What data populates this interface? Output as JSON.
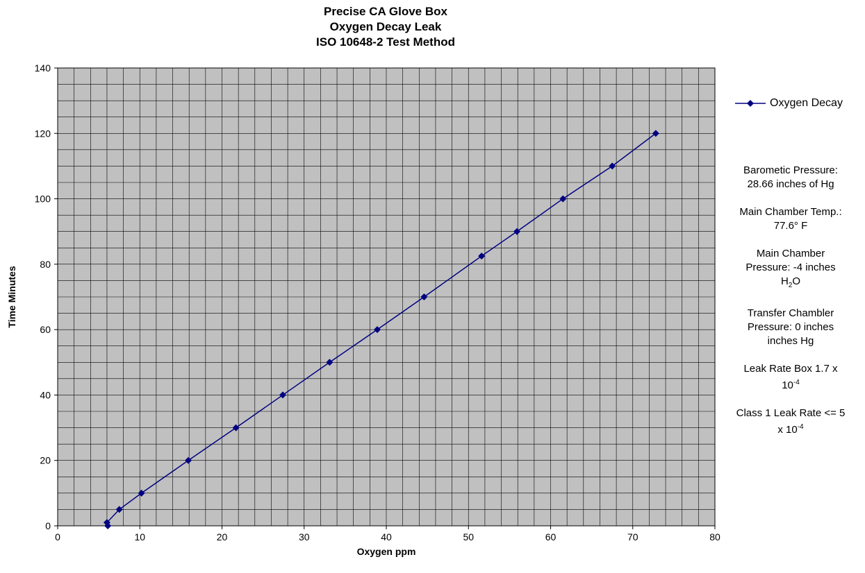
{
  "chart_data": {
    "type": "scatter",
    "mode": "lines+markers",
    "title": [
      "Precise CA Glove Box",
      "Oxygen Decay Leak",
      "ISO 10648-2 Test Method"
    ],
    "xlabel": "Oxygen ppm",
    "ylabel": "Time Minutes",
    "xlim": [
      0,
      80
    ],
    "ylim": [
      0,
      140
    ],
    "x_ticks": [
      0,
      10,
      20,
      30,
      40,
      50,
      60,
      70,
      80
    ],
    "y_ticks": [
      0,
      20,
      40,
      60,
      80,
      100,
      120,
      140
    ],
    "grid": true,
    "plot_background": "#c0c0c0",
    "legend_position": "right",
    "series": [
      {
        "name": "Oxygen Decay",
        "color": "#000080",
        "marker": "diamond",
        "x": [
          6.1,
          6.0,
          7.5,
          10.2,
          15.9,
          21.7,
          27.4,
          33.1,
          38.9,
          44.6,
          51.6,
          55.9,
          61.5,
          67.5,
          72.8
        ],
        "y": [
          0,
          1,
          5,
          10,
          20,
          30,
          40,
          50,
          60,
          70,
          82.5,
          90,
          100,
          110,
          120
        ]
      }
    ],
    "annotations": [
      {
        "line1": "Barometic Pressure:",
        "line2": "28.66 inches of Hg"
      },
      {
        "line1": "Main Chamber Temp.:",
        "line2": "77.6° F"
      },
      {
        "line1": "Main Chamber",
        "line2": "Pressure: -4 inches",
        "line3_main": "H",
        "line3_sub": "2",
        "line3_tail": "O"
      },
      {
        "line1": "Transfer Chambler",
        "line2": "Pressure: 0 inches",
        "line3": "inches Hg"
      },
      {
        "line1": "Leak Rate Box 1.7 x",
        "line2_main": "10",
        "line2_sup": "-4"
      },
      {
        "line1": "Class 1 Leak Rate <= 5",
        "line2_main": "x 10",
        "line2_sup": "-4"
      }
    ]
  }
}
